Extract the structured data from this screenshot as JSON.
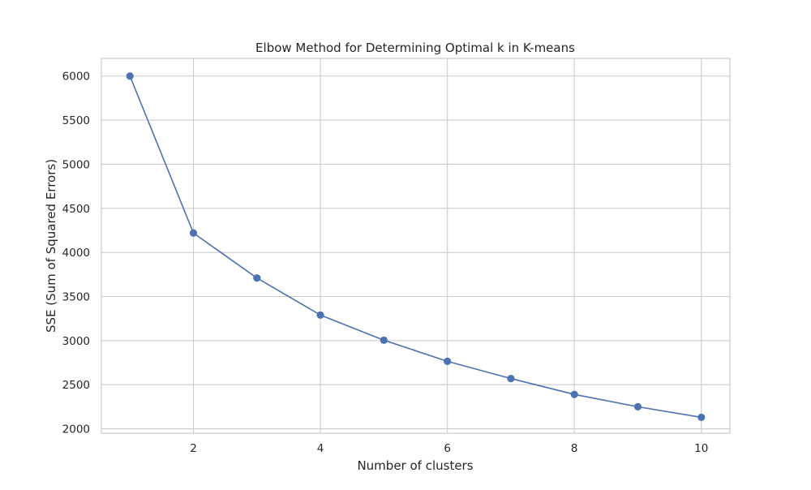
{
  "chart_data": {
    "type": "line",
    "title": "Elbow Method for Determining Optimal k in K-means",
    "xlabel": "Number of clusters",
    "ylabel": "SSE (Sum of Squared Errors)",
    "xlim": [
      0.55,
      10.45
    ],
    "ylim": [
      1950,
      6200
    ],
    "xticks": [
      2,
      4,
      6,
      8,
      10
    ],
    "yticks": [
      2000,
      2500,
      3000,
      3500,
      4000,
      4500,
      5000,
      5500,
      6000
    ],
    "grid": true,
    "legend": "none",
    "colors": {
      "line": "#4c72b0",
      "grid": "#cccccc",
      "frame": "#cccccc",
      "text": "#262626"
    },
    "series": [
      {
        "x": [
          1,
          2,
          3,
          4,
          5,
          6,
          7,
          8,
          9,
          10
        ],
        "values": [
          6000,
          4220,
          3710,
          3290,
          3005,
          2765,
          2570,
          2390,
          2250,
          2130
        ]
      }
    ]
  }
}
